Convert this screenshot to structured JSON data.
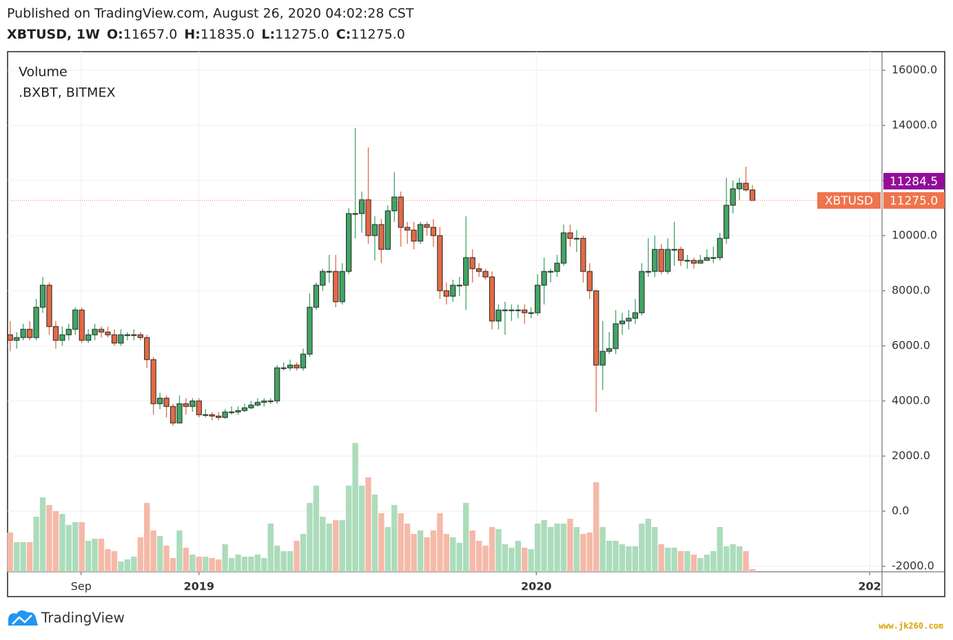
{
  "chart_data": {
    "type": "candlestick",
    "title": "Published on TradingView.com, August 26, 2020 04:02:28 CST",
    "symbol": "XBTUSD, 1W",
    "ohlc": [
      {
        "label": "O:",
        "value": "11657.0"
      },
      {
        "label": "H:",
        "value": "11835.0"
      },
      {
        "label": "L:",
        "value": "11275.0"
      },
      {
        "label": "C:",
        "value": "11275.0"
      }
    ],
    "indicator": "Volume",
    "source": ".BXBT, BITMEX",
    "brand": "TradingView",
    "watermark": "www.jk260.com",
    "up_color": "#41a564",
    "down_color": "#e36a45",
    "up_volume_color": "#acdcbb",
    "down_volume_color": "#f5b9a8",
    "grid": true,
    "ylim": [
      -2200,
      16675
    ],
    "yticks": [
      {
        "value": -2000,
        "label": "-2000.0"
      },
      {
        "value": 0,
        "label": "0.0"
      },
      {
        "value": 2000,
        "label": "2000.0"
      },
      {
        "value": 4000,
        "label": "4000.0"
      },
      {
        "value": 6000,
        "label": "6000.0"
      },
      {
        "value": 8000,
        "label": "8000.0"
      },
      {
        "value": 10000,
        "label": "10000.0"
      },
      {
        "value": 12000,
        "label": "12000.0"
      },
      {
        "value": 14000,
        "label": "14000.0"
      },
      {
        "value": 16000,
        "label": "16000.0"
      }
    ],
    "xlim": [
      -0.4,
      133.9
    ],
    "xticks": [
      {
        "value": 10.9,
        "label": "Sep",
        "bold": false
      },
      {
        "value": 29.0,
        "label": "2019",
        "bold": true
      },
      {
        "value": 80.8,
        "label": "2020",
        "bold": true
      },
      {
        "value": 132.0,
        "label": "202",
        "bold": true
      }
    ],
    "last_price": {
      "name": "XBTUSD",
      "value": 11275,
      "label": "11275.0",
      "color": "#f0734c"
    },
    "ma_price": {
      "value": 11284.5,
      "color": "#930d9a"
    },
    "open": [
      6400,
      6200,
      6300,
      6600,
      6300,
      7400,
      8200,
      6700,
      6200,
      6400,
      6600,
      7300,
      6200,
      6400,
      6600,
      6500,
      6400,
      6100,
      6400,
      6400,
      6400,
      6300,
      5500,
      3900,
      4100,
      3800,
      3200,
      3900,
      3800,
      4000,
      3500,
      3500,
      3450,
      3400,
      3600,
      3600,
      3650,
      3750,
      3850,
      3950,
      4000,
      4000,
      5200,
      5200,
      5300,
      5200,
      5700,
      7400,
      8200,
      8700,
      8700,
      7600,
      8700,
      10800,
      10800,
      11300,
      10000,
      10400,
      9500,
      10900,
      11400,
      10300,
      10200,
      9800,
      10400,
      10300,
      10000,
      8000,
      7800,
      8200,
      8200,
      9200,
      8800,
      8700,
      8500,
      6900,
      7300,
      7300,
      7300,
      7300,
      7200,
      7200,
      8200,
      8700,
      8700,
      9000,
      10100,
      9900,
      9900,
      8700,
      8000,
      5300,
      5800,
      5900,
      6800,
      6900,
      7000,
      7200,
      8700,
      8700,
      9500,
      8700,
      9500,
      9500,
      9100,
      9100,
      9000,
      9100,
      9200,
      9200,
      9900,
      11100,
      11700,
      11900,
      11657
    ],
    "high": [
      6900,
      6500,
      6800,
      6900,
      7700,
      8500,
      8300,
      6900,
      6700,
      6800,
      7400,
      7400,
      6600,
      6800,
      6700,
      6700,
      6600,
      6600,
      6500,
      6600,
      6500,
      6400,
      5600,
      4300,
      4200,
      3900,
      4200,
      4100,
      4100,
      4100,
      3700,
      3600,
      3600,
      3700,
      3800,
      3800,
      3900,
      4000,
      4100,
      4100,
      4100,
      5300,
      5400,
      5500,
      5400,
      5900,
      7900,
      8300,
      8800,
      9300,
      9300,
      9000,
      11000,
      13900,
      11600,
      13200,
      10700,
      10600,
      11100,
      12300,
      11600,
      10500,
      10500,
      10500,
      10500,
      10600,
      10300,
      8300,
      8400,
      8500,
      10700,
      9500,
      9000,
      8800,
      8700,
      7500,
      7600,
      7500,
      7500,
      7500,
      7400,
      8600,
      9200,
      8800,
      9300,
      10400,
      10400,
      10200,
      10000,
      9000,
      8000,
      6900,
      6500,
      7300,
      7200,
      7300,
      7700,
      9000,
      9900,
      10000,
      9700,
      9900,
      10500,
      9600,
      9300,
      9200,
      9300,
      9500,
      9600,
      10100,
      12100,
      12000,
      12100,
      12500,
      11835
    ],
    "low": [
      5800,
      5900,
      6200,
      6200,
      6200,
      7200,
      6400,
      5900,
      6000,
      6200,
      6400,
      6100,
      6100,
      6200,
      6300,
      6300,
      6000,
      6000,
      6200,
      6200,
      6200,
      5200,
      3500,
      3700,
      3400,
      3100,
      3200,
      3500,
      3600,
      3400,
      3400,
      3300,
      3300,
      3350,
      3500,
      3500,
      3600,
      3700,
      3800,
      3800,
      3900,
      3900,
      5100,
      5100,
      5100,
      5100,
      5600,
      7300,
      8000,
      8300,
      7400,
      7500,
      8600,
      9900,
      10100,
      9700,
      9100,
      9000,
      9500,
      10500,
      9600,
      9700,
      9500,
      9700,
      10000,
      9600,
      7700,
      7500,
      7600,
      7800,
      7300,
      8300,
      8500,
      8400,
      6600,
      6600,
      6400,
      6900,
      7000,
      6800,
      7000,
      7100,
      7500,
      8300,
      8500,
      8900,
      9600,
      9400,
      8300,
      7700,
      3600,
      4400,
      5700,
      5700,
      6400,
      6600,
      6800,
      7100,
      8500,
      8500,
      8600,
      8600,
      8900,
      8900,
      8800,
      8800,
      9000,
      9100,
      9000,
      9100,
      9700,
      10800,
      11300,
      11600,
      11275
    ],
    "close": [
      6200,
      6300,
      6600,
      6300,
      7400,
      8200,
      6700,
      6200,
      6400,
      6600,
      7300,
      6200,
      6400,
      6600,
      6500,
      6400,
      6100,
      6400,
      6400,
      6400,
      6300,
      5500,
      3900,
      4100,
      3800,
      3200,
      3900,
      3800,
      4000,
      3500,
      3500,
      3450,
      3400,
      3600,
      3600,
      3650,
      3750,
      3850,
      3950,
      4000,
      4000,
      5200,
      5200,
      5300,
      5200,
      5700,
      7400,
      8200,
      8700,
      8700,
      7600,
      8700,
      10800,
      10800,
      11300,
      10000,
      10400,
      9500,
      10900,
      11400,
      10300,
      10200,
      9800,
      10400,
      10300,
      10000,
      8000,
      7800,
      8200,
      8200,
      9200,
      8800,
      8700,
      8500,
      6900,
      7300,
      7300,
      7300,
      7300,
      7200,
      7200,
      8200,
      8700,
      8700,
      9000,
      10100,
      9900,
      9900,
      8700,
      8000,
      5300,
      5800,
      5900,
      6800,
      6900,
      7000,
      7200,
      8700,
      8700,
      9500,
      8700,
      9500,
      9500,
      9100,
      9100,
      9000,
      9100,
      9200,
      9200,
      9900,
      11100,
      11700,
      11900,
      11657,
      11275
    ],
    "volume": [
      57,
      43,
      43,
      43,
      80,
      108,
      97,
      88,
      84,
      68,
      72,
      72,
      45,
      48,
      48,
      33,
      30,
      15,
      18,
      22,
      50,
      100,
      60,
      52,
      38,
      20,
      60,
      35,
      25,
      22,
      22,
      20,
      18,
      40,
      20,
      25,
      22,
      22,
      25,
      20,
      70,
      38,
      30,
      30,
      45,
      55,
      100,
      125,
      80,
      70,
      75,
      75,
      125,
      187,
      125,
      137,
      112,
      85,
      65,
      97,
      85,
      70,
      55,
      60,
      50,
      60,
      85,
      55,
      50,
      42,
      100,
      60,
      45,
      38,
      65,
      62,
      40,
      35,
      45,
      35,
      33,
      70,
      75,
      65,
      70,
      70,
      77,
      65,
      55,
      57,
      130,
      65,
      45,
      45,
      40,
      37,
      37,
      70,
      77,
      65,
      40,
      35,
      35,
      30,
      30,
      25,
      20,
      25,
      30,
      65,
      37,
      40,
      37,
      30,
      4
    ]
  }
}
